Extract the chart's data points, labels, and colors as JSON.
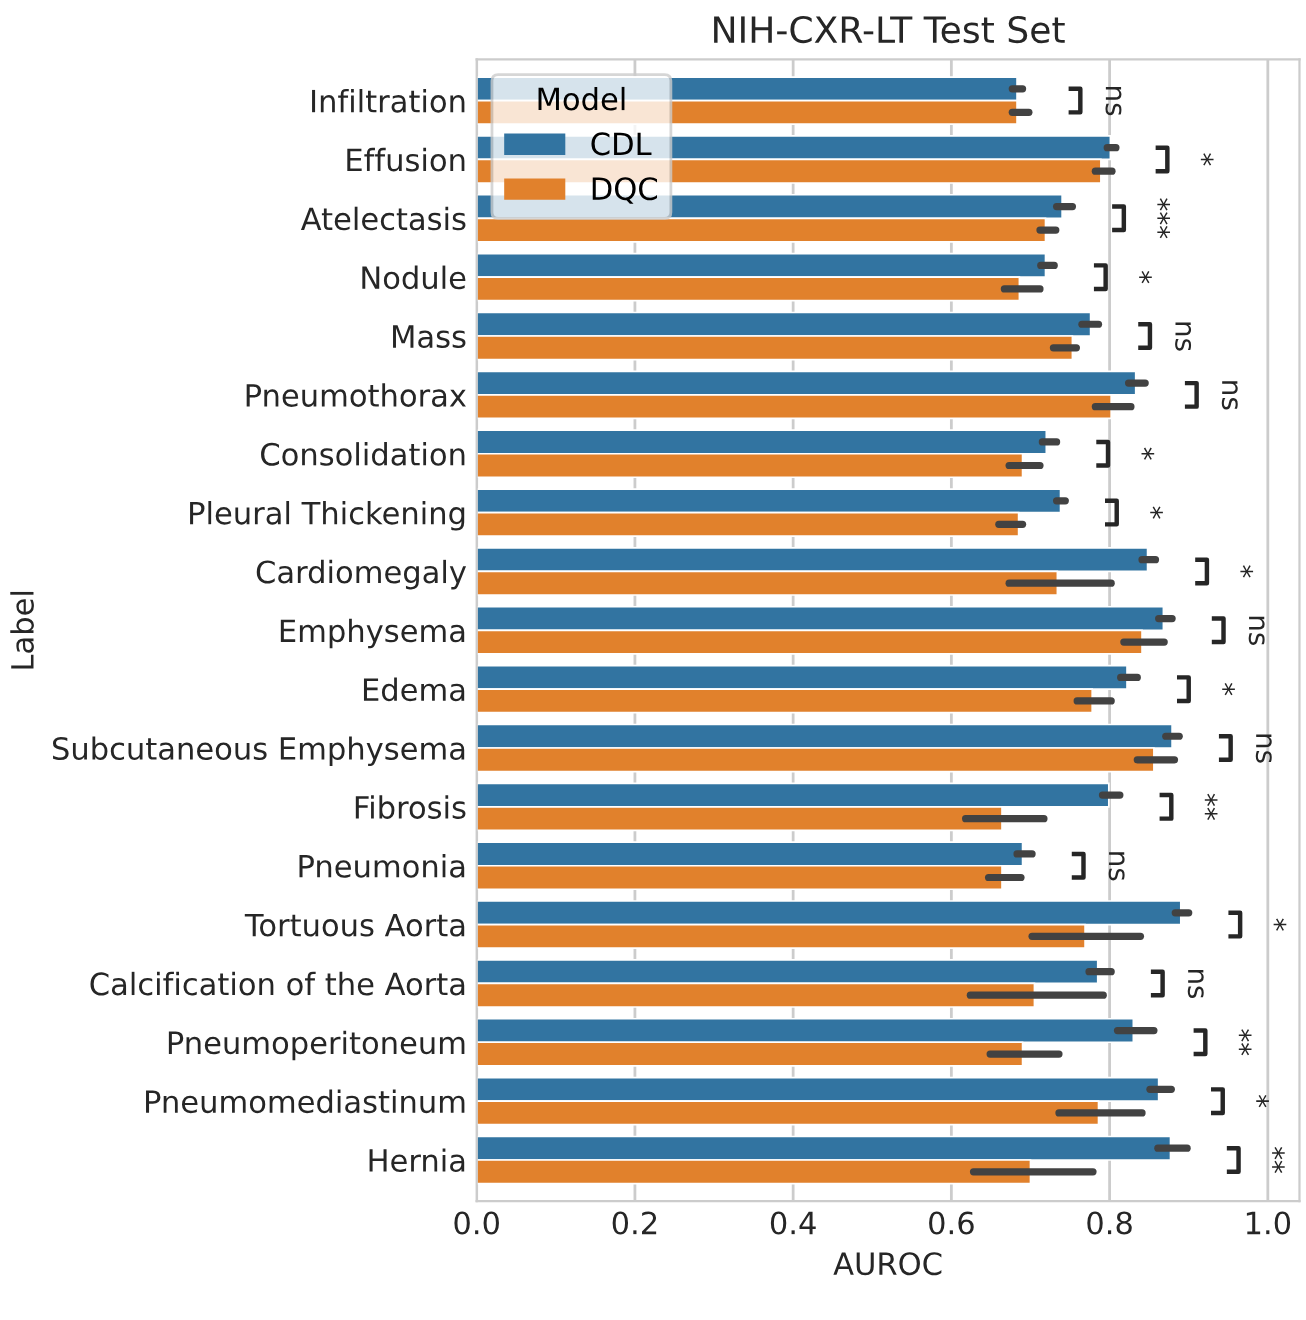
{
  "chart_data": {
    "type": "bar",
    "orientation": "horizontal",
    "title": "NIH-CXR-LT Test Set",
    "xlabel": "AUROC",
    "ylabel": "Label",
    "legend_title": "Model",
    "legend": "top left",
    "grid": true,
    "categories": [
      "Infiltration",
      "Effusion",
      "Atelectasis",
      "Nodule",
      "Mass",
      "Pneumothorax",
      "Consolidation",
      "Pleural Thickening",
      "Cardiomegaly",
      "Emphysema",
      "Edema",
      "Subcutaneous Emphysema",
      "Fibrosis",
      "Pneumonia",
      "Tortuous Aorta",
      "Calcification of the Aorta",
      "Pneumoperitoneum",
      "Pneumomediastinum",
      "Hernia"
    ],
    "xlim": [
      0,
      1.04
    ],
    "xticks": [
      {
        "value": 0,
        "label": "0.0"
      },
      0.2,
      0.4,
      0.6,
      0.8,
      {
        "value": 1,
        "label": "1.0"
      }
    ],
    "series": [
      {
        "name": "CDL",
        "color": "#3274a1",
        "values": [
          0.683,
          0.801,
          0.74,
          0.719,
          0.776,
          0.833,
          0.72,
          0.738,
          0.848,
          0.868,
          0.822,
          0.879,
          0.799,
          0.69,
          0.89,
          0.785,
          0.83,
          0.862,
          0.877
        ],
        "errors": [
          [
            0.677,
            0.69
          ],
          [
            0.797,
            0.808
          ],
          [
            0.733,
            0.753
          ],
          [
            0.713,
            0.73
          ],
          [
            0.765,
            0.786
          ],
          [
            0.824,
            0.845
          ],
          [
            0.715,
            0.733
          ],
          [
            0.733,
            0.744
          ],
          [
            0.841,
            0.858
          ],
          [
            0.862,
            0.879
          ],
          [
            0.814,
            0.835
          ],
          [
            0.871,
            0.888
          ],
          [
            0.791,
            0.813
          ],
          [
            0.683,
            0.702
          ],
          [
            0.883,
            0.9
          ],
          [
            0.774,
            0.802
          ],
          [
            0.81,
            0.856
          ],
          [
            0.851,
            0.878
          ],
          [
            0.861,
            0.898
          ]
        ]
      },
      {
        "name": "DQC",
        "color": "#e1812c",
        "values": [
          0.683,
          0.789,
          0.719,
          0.686,
          0.753,
          0.802,
          0.69,
          0.685,
          0.734,
          0.841,
          0.778,
          0.856,
          0.664,
          0.664,
          0.769,
          0.705,
          0.69,
          0.786,
          0.7
        ],
        "errors": [
          [
            0.677,
            0.698
          ],
          [
            0.782,
            0.803
          ],
          [
            0.712,
            0.732
          ],
          [
            0.667,
            0.712
          ],
          [
            0.729,
            0.758
          ],
          [
            0.782,
            0.827
          ],
          [
            0.673,
            0.712
          ],
          [
            0.66,
            0.69
          ],
          [
            0.673,
            0.802
          ],
          [
            0.818,
            0.869
          ],
          [
            0.759,
            0.802
          ],
          [
            0.835,
            0.882
          ],
          [
            0.618,
            0.717
          ],
          [
            0.647,
            0.688
          ],
          [
            0.702,
            0.839
          ],
          [
            0.624,
            0.792
          ],
          [
            0.649,
            0.736
          ],
          [
            0.736,
            0.841
          ],
          [
            0.628,
            0.779
          ]
        ]
      }
    ],
    "annotations": [
      "ns",
      "*",
      "***",
      "*",
      "ns",
      "ns",
      "*",
      "*",
      "*",
      "ns",
      "*",
      "ns",
      "**",
      "ns",
      "*",
      "ns",
      "**",
      "*",
      "**"
    ]
  }
}
